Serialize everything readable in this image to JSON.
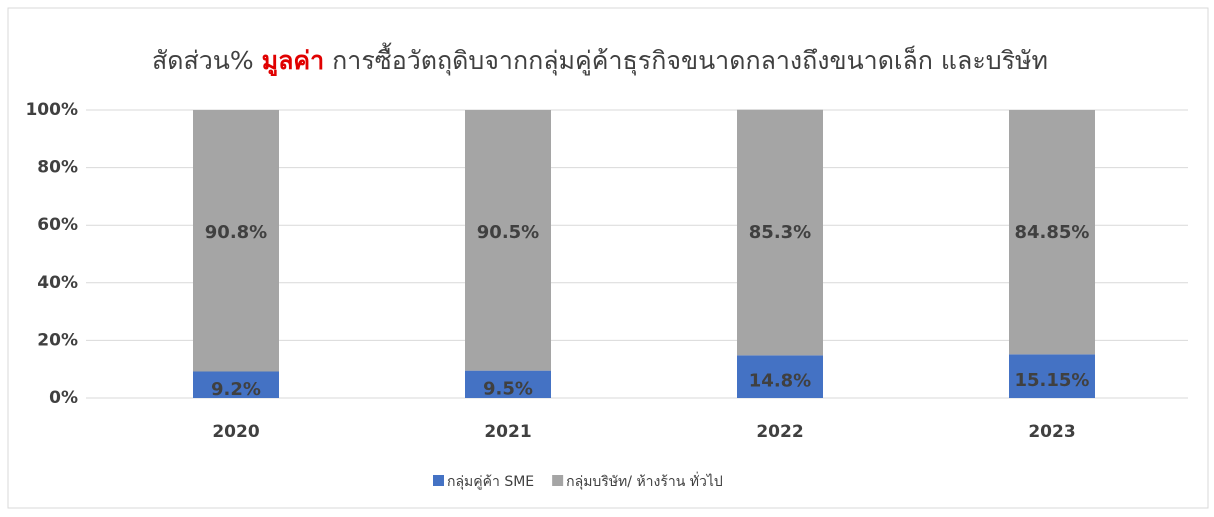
{
  "chart_data": {
    "type": "stacked_bar",
    "title": [
      {
        "text": "สัดส่วน%",
        "color": "#404040"
      },
      {
        "text": "มูลค่า",
        "color": "#e00000"
      },
      {
        "text": "การซื้อวัตถุดิบจากกลุ่มคู่ค้าธุรกิจขนาดกลางถึงขนาดเล็ก  และบริษัท",
        "color": "#404040"
      }
    ],
    "categories": [
      "2020",
      "2021",
      "2022",
      "2023"
    ],
    "series": [
      {
        "name": "กลุ่มคู่ค้า SME",
        "color": "#4472c4",
        "values": [
          9.2,
          9.5,
          14.8,
          15.15
        ],
        "value_labels": [
          "9.2%",
          "9.5%",
          "14.8%",
          "15.15%"
        ]
      },
      {
        "name": "กลุ่มบริษัท/ ห้างร้าน ทั่วไป",
        "color": "#a5a5a5",
        "values": [
          90.8,
          90.5,
          85.3,
          84.85
        ],
        "value_labels": [
          "90.8%",
          "90.5%",
          "85.3%",
          "84.85%"
        ]
      }
    ],
    "ylim": [
      0,
      100
    ],
    "yticks": [
      {
        "value": 0,
        "label": "0%"
      },
      {
        "value": 20,
        "label": "20%"
      },
      {
        "value": 40,
        "label": "40%"
      },
      {
        "value": 60,
        "label": "60%"
      },
      {
        "value": 80,
        "label": "80%"
      },
      {
        "value": 100,
        "label": "100%"
      }
    ],
    "grid": true,
    "legend": "bottom"
  }
}
